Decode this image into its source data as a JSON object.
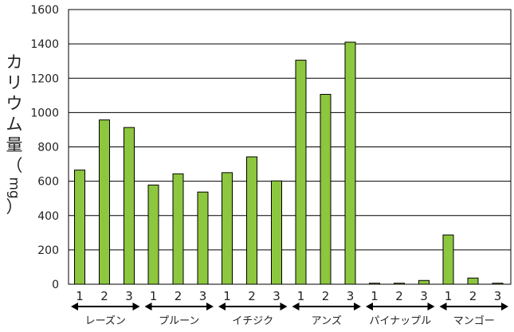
{
  "chart_data": {
    "type": "bar",
    "ylabel": "カリウム量（mg）",
    "ylim": [
      0,
      1600
    ],
    "yticks": [
      0,
      200,
      400,
      600,
      800,
      1000,
      1200,
      1400,
      1600
    ],
    "grid": true,
    "bar_color": "#8dc63f",
    "groups": [
      {
        "name": "レーズン",
        "sub_labels": [
          "1",
          "2",
          "3"
        ],
        "values": [
          665,
          957,
          913
        ]
      },
      {
        "name": "プルーン",
        "sub_labels": [
          "1",
          "2",
          "3"
        ],
        "values": [
          578,
          643,
          537
        ]
      },
      {
        "name": "イチジク",
        "sub_labels": [
          "1",
          "2",
          "3"
        ],
        "values": [
          650,
          742,
          602
        ]
      },
      {
        "name": "アンズ",
        "sub_labels": [
          "1",
          "2",
          "3"
        ],
        "values": [
          1305,
          1106,
          1410
        ]
      },
      {
        "name": "パイナップル",
        "sub_labels": [
          "1",
          "2",
          "3"
        ],
        "values": [
          6,
          6,
          22
        ]
      },
      {
        "name": "マンゴー",
        "sub_labels": [
          "1",
          "2",
          "3"
        ],
        "values": [
          287,
          36,
          6
        ]
      }
    ]
  }
}
